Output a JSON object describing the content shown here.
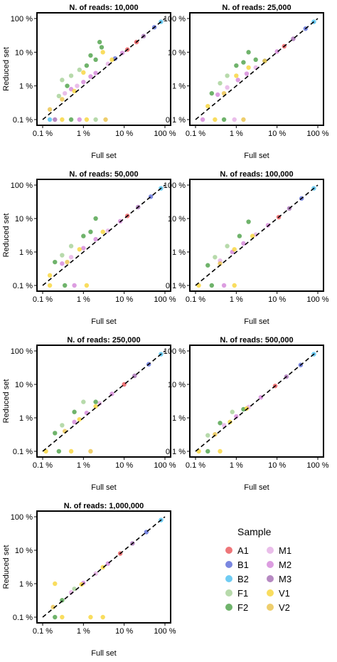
{
  "chart_data": {
    "type": "scatter",
    "scale": "log",
    "grid": false,
    "xlabel": "Full set",
    "ylabel": "Reduced set",
    "xlim": [
      0.1,
      100
    ],
    "ylim": [
      0.1,
      100
    ],
    "ticks": [
      {
        "value": 0.1,
        "label": "0.1 %"
      },
      {
        "value": 1,
        "label": "1 %"
      },
      {
        "value": 10,
        "label": "10 %"
      },
      {
        "value": 100,
        "label": "100 %"
      }
    ],
    "reference_line": "y = x (dashed)",
    "legend": {
      "title": "Sample",
      "position": "bottom-right",
      "entries": [
        {
          "name": "A1",
          "color": "#E8484C"
        },
        {
          "name": "M1",
          "color": "#E3A8E3"
        },
        {
          "name": "B1",
          "color": "#4D5FD6"
        },
        {
          "name": "M2",
          "color": "#D07CD6"
        },
        {
          "name": "B2",
          "color": "#3FBBEF"
        },
        {
          "name": "M3",
          "color": "#9E62AD"
        },
        {
          "name": "F1",
          "color": "#9FCE8F"
        },
        {
          "name": "V1",
          "color": "#F7D22A"
        },
        {
          "name": "F2",
          "color": "#3F9A3A"
        },
        {
          "name": "V2",
          "color": "#E8BE3C"
        }
      ]
    },
    "panels": [
      {
        "title": "N. of reads: 10,000",
        "points": [
          {
            "x": 80,
            "y": 80,
            "s": "B2"
          },
          {
            "x": 55,
            "y": 55,
            "s": "B1"
          },
          {
            "x": 30,
            "y": 30,
            "s": "M3"
          },
          {
            "x": 20,
            "y": 20,
            "s": "A1"
          },
          {
            "x": 12,
            "y": 12,
            "s": "A1"
          },
          {
            "x": 9,
            "y": 9.5,
            "s": "M2"
          },
          {
            "x": 6,
            "y": 6.5,
            "s": "B1"
          },
          {
            "x": 4,
            "y": 4.5,
            "s": "M1"
          },
          {
            "x": 2,
            "y": 2.4,
            "s": "M2"
          },
          {
            "x": 1.5,
            "y": 1.9,
            "s": "M2"
          },
          {
            "x": 1,
            "y": 1.3,
            "s": "M2"
          },
          {
            "x": 0.7,
            "y": 1.0,
            "s": "M1"
          },
          {
            "x": 0.5,
            "y": 0.8,
            "s": "M2"
          },
          {
            "x": 0.35,
            "y": 0.6,
            "s": "M1"
          },
          {
            "x": 1.2,
            "y": 4,
            "s": "F2"
          },
          {
            "x": 2,
            "y": 6,
            "s": "F2"
          },
          {
            "x": 2.5,
            "y": 20,
            "s": "F2"
          },
          {
            "x": 1.5,
            "y": 8,
            "s": "F2"
          },
          {
            "x": 0.8,
            "y": 3,
            "s": "F1"
          },
          {
            "x": 0.5,
            "y": 2,
            "s": "F1"
          },
          {
            "x": 0.4,
            "y": 1,
            "s": "F2"
          },
          {
            "x": 0.25,
            "y": 0.5,
            "s": "F1"
          },
          {
            "x": 0.3,
            "y": 1.5,
            "s": "F1"
          },
          {
            "x": 2.8,
            "y": 14,
            "s": "F2"
          },
          {
            "x": 1,
            "y": 2.5,
            "s": "V1"
          },
          {
            "x": 3,
            "y": 10,
            "s": "V1"
          },
          {
            "x": 5,
            "y": 6,
            "s": "V1"
          },
          {
            "x": 0.6,
            "y": 0.7,
            "s": "V1"
          },
          {
            "x": 0.3,
            "y": 0.4,
            "s": "V2"
          },
          {
            "x": 0.15,
            "y": 0.2,
            "s": "V2"
          },
          {
            "x": 0.15,
            "y": 0.1,
            "s": "B2"
          },
          {
            "x": 0.3,
            "y": 0.1,
            "s": "V1"
          },
          {
            "x": 0.5,
            "y": 0.1,
            "s": "F2"
          },
          {
            "x": 0.8,
            "y": 0.1,
            "s": "M2"
          },
          {
            "x": 1.2,
            "y": 0.1,
            "s": "V1"
          },
          {
            "x": 2,
            "y": 0.1,
            "s": "F1"
          },
          {
            "x": 3.5,
            "y": 0.1,
            "s": "V2"
          },
          {
            "x": 0.2,
            "y": 0.1,
            "s": "M3"
          }
        ]
      },
      {
        "title": "N. of reads: 25,000",
        "points": [
          {
            "x": 80,
            "y": 80,
            "s": "B2"
          },
          {
            "x": 50,
            "y": 50,
            "s": "B1"
          },
          {
            "x": 25,
            "y": 25,
            "s": "M3"
          },
          {
            "x": 15,
            "y": 15,
            "s": "A1"
          },
          {
            "x": 10,
            "y": 10.5,
            "s": "M2"
          },
          {
            "x": 5,
            "y": 5.5,
            "s": "B1"
          },
          {
            "x": 3,
            "y": 3.5,
            "s": "M1"
          },
          {
            "x": 1.8,
            "y": 2.3,
            "s": "M2"
          },
          {
            "x": 1.1,
            "y": 1.5,
            "s": "M2"
          },
          {
            "x": 0.6,
            "y": 0.9,
            "s": "M1"
          },
          {
            "x": 0.35,
            "y": 0.55,
            "s": "M2"
          },
          {
            "x": 2,
            "y": 10,
            "s": "F2"
          },
          {
            "x": 1,
            "y": 4,
            "s": "F2"
          },
          {
            "x": 1.5,
            "y": 5,
            "s": "F2"
          },
          {
            "x": 0.6,
            "y": 2,
            "s": "F1"
          },
          {
            "x": 0.4,
            "y": 1.2,
            "s": "F1"
          },
          {
            "x": 0.25,
            "y": 0.6,
            "s": "F2"
          },
          {
            "x": 3,
            "y": 6,
            "s": "F2"
          },
          {
            "x": 1,
            "y": 2,
            "s": "V1"
          },
          {
            "x": 2,
            "y": 3.5,
            "s": "V1"
          },
          {
            "x": 5,
            "y": 5.5,
            "s": "V1"
          },
          {
            "x": 0.5,
            "y": 0.6,
            "s": "V2"
          },
          {
            "x": 0.2,
            "y": 0.25,
            "s": "V1"
          },
          {
            "x": 0.15,
            "y": 0.1,
            "s": "M2"
          },
          {
            "x": 0.3,
            "y": 0.1,
            "s": "V1"
          },
          {
            "x": 0.5,
            "y": 0.1,
            "s": "F2"
          },
          {
            "x": 0.9,
            "y": 0.1,
            "s": "M1"
          },
          {
            "x": 1.5,
            "y": 0.1,
            "s": "V2"
          }
        ]
      },
      {
        "title": "N. of reads: 50,000",
        "points": [
          {
            "x": 80,
            "y": 80,
            "s": "B2"
          },
          {
            "x": 45,
            "y": 45,
            "s": "B1"
          },
          {
            "x": 22,
            "y": 22,
            "s": "M3"
          },
          {
            "x": 12,
            "y": 12,
            "s": "A1"
          },
          {
            "x": 8,
            "y": 8.3,
            "s": "M2"
          },
          {
            "x": 4,
            "y": 4.3,
            "s": "M1"
          },
          {
            "x": 2,
            "y": 2.4,
            "s": "M2"
          },
          {
            "x": 1,
            "y": 1.3,
            "s": "M2"
          },
          {
            "x": 0.5,
            "y": 0.7,
            "s": "M1"
          },
          {
            "x": 0.3,
            "y": 0.45,
            "s": "M2"
          },
          {
            "x": 2,
            "y": 10,
            "s": "F2"
          },
          {
            "x": 1,
            "y": 3,
            "s": "F2"
          },
          {
            "x": 0.5,
            "y": 1.5,
            "s": "F1"
          },
          {
            "x": 0.3,
            "y": 0.8,
            "s": "F1"
          },
          {
            "x": 0.2,
            "y": 0.5,
            "s": "F2"
          },
          {
            "x": 1.5,
            "y": 4,
            "s": "F2"
          },
          {
            "x": 0.8,
            "y": 1.2,
            "s": "V1"
          },
          {
            "x": 3,
            "y": 4,
            "s": "V1"
          },
          {
            "x": 0.4,
            "y": 0.5,
            "s": "V2"
          },
          {
            "x": 0.15,
            "y": 0.2,
            "s": "V1"
          },
          {
            "x": 0.15,
            "y": 0.1,
            "s": "V1"
          },
          {
            "x": 0.35,
            "y": 0.1,
            "s": "F2"
          },
          {
            "x": 0.6,
            "y": 0.1,
            "s": "M2"
          },
          {
            "x": 1.2,
            "y": 0.1,
            "s": "V1"
          }
        ]
      },
      {
        "title": "N. of reads: 100,000",
        "points": [
          {
            "x": 80,
            "y": 80,
            "s": "B2"
          },
          {
            "x": 40,
            "y": 40,
            "s": "B1"
          },
          {
            "x": 20,
            "y": 20,
            "s": "M3"
          },
          {
            "x": 11,
            "y": 11,
            "s": "A1"
          },
          {
            "x": 6,
            "y": 6.3,
            "s": "M2"
          },
          {
            "x": 3,
            "y": 3.3,
            "s": "M1"
          },
          {
            "x": 1.5,
            "y": 1.8,
            "s": "M2"
          },
          {
            "x": 0.8,
            "y": 1,
            "s": "M2"
          },
          {
            "x": 0.4,
            "y": 0.55,
            "s": "M1"
          },
          {
            "x": 2,
            "y": 8,
            "s": "F2"
          },
          {
            "x": 1.2,
            "y": 3,
            "s": "F2"
          },
          {
            "x": 0.6,
            "y": 1.5,
            "s": "F1"
          },
          {
            "x": 0.3,
            "y": 0.7,
            "s": "F1"
          },
          {
            "x": 0.2,
            "y": 0.4,
            "s": "F2"
          },
          {
            "x": 0.9,
            "y": 1.2,
            "s": "V1"
          },
          {
            "x": 2.5,
            "y": 3,
            "s": "V1"
          },
          {
            "x": 0.4,
            "y": 0.45,
            "s": "V2"
          },
          {
            "x": 0.12,
            "y": 0.1,
            "s": "V1"
          },
          {
            "x": 0.25,
            "y": 0.1,
            "s": "F2"
          },
          {
            "x": 0.5,
            "y": 0.1,
            "s": "M2"
          },
          {
            "x": 0.9,
            "y": 0.1,
            "s": "V1"
          }
        ]
      },
      {
        "title": "N. of reads: 250,000",
        "points": [
          {
            "x": 80,
            "y": 80,
            "s": "B2"
          },
          {
            "x": 40,
            "y": 40,
            "s": "B1"
          },
          {
            "x": 18,
            "y": 18,
            "s": "M3"
          },
          {
            "x": 10,
            "y": 10,
            "s": "A1"
          },
          {
            "x": 5,
            "y": 5.2,
            "s": "M2"
          },
          {
            "x": 2.5,
            "y": 2.7,
            "s": "M1"
          },
          {
            "x": 1.2,
            "y": 1.4,
            "s": "M2"
          },
          {
            "x": 0.6,
            "y": 0.75,
            "s": "M2"
          },
          {
            "x": 1,
            "y": 3,
            "s": "F1"
          },
          {
            "x": 0.6,
            "y": 1.5,
            "s": "F2"
          },
          {
            "x": 0.3,
            "y": 0.6,
            "s": "F1"
          },
          {
            "x": 0.2,
            "y": 0.35,
            "s": "F2"
          },
          {
            "x": 2,
            "y": 3,
            "s": "F2"
          },
          {
            "x": 0.8,
            "y": 0.9,
            "s": "V1"
          },
          {
            "x": 2,
            "y": 2.2,
            "s": "V1"
          },
          {
            "x": 0.35,
            "y": 0.4,
            "s": "V2"
          },
          {
            "x": 0.12,
            "y": 0.1,
            "s": "V1"
          },
          {
            "x": 0.25,
            "y": 0.1,
            "s": "F2"
          },
          {
            "x": 0.5,
            "y": 0.1,
            "s": "V1"
          },
          {
            "x": 1.5,
            "y": 0.1,
            "s": "V2"
          }
        ]
      },
      {
        "title": "N. of reads: 500,000",
        "points": [
          {
            "x": 80,
            "y": 80,
            "s": "B2"
          },
          {
            "x": 38,
            "y": 38,
            "s": "B1"
          },
          {
            "x": 17,
            "y": 17,
            "s": "M3"
          },
          {
            "x": 9,
            "y": 9,
            "s": "A1"
          },
          {
            "x": 4,
            "y": 4.1,
            "s": "M2"
          },
          {
            "x": 2,
            "y": 2.1,
            "s": "M1"
          },
          {
            "x": 1,
            "y": 1.1,
            "s": "M2"
          },
          {
            "x": 0.5,
            "y": 0.6,
            "s": "M1"
          },
          {
            "x": 0.8,
            "y": 1.5,
            "s": "F1"
          },
          {
            "x": 0.4,
            "y": 0.7,
            "s": "F2"
          },
          {
            "x": 0.2,
            "y": 0.3,
            "s": "F1"
          },
          {
            "x": 1.5,
            "y": 1.8,
            "s": "F2"
          },
          {
            "x": 0.7,
            "y": 0.75,
            "s": "V1"
          },
          {
            "x": 1.8,
            "y": 1.9,
            "s": "V1"
          },
          {
            "x": 0.3,
            "y": 0.32,
            "s": "V2"
          },
          {
            "x": 0.12,
            "y": 0.1,
            "s": "V1"
          },
          {
            "x": 0.2,
            "y": 0.1,
            "s": "F2"
          },
          {
            "x": 0.4,
            "y": 0.1,
            "s": "V1"
          }
        ]
      },
      {
        "title": "N. of reads: 1,000,000",
        "points": [
          {
            "x": 80,
            "y": 80,
            "s": "B2"
          },
          {
            "x": 35,
            "y": 35,
            "s": "B1"
          },
          {
            "x": 16,
            "y": 16,
            "s": "M3"
          },
          {
            "x": 8,
            "y": 8,
            "s": "A1"
          },
          {
            "x": 4,
            "y": 4,
            "s": "M2"
          },
          {
            "x": 2,
            "y": 2,
            "s": "M1"
          },
          {
            "x": 1,
            "y": 1.05,
            "s": "M2"
          },
          {
            "x": 0.5,
            "y": 0.55,
            "s": "M1"
          },
          {
            "x": 0.3,
            "y": 0.32,
            "s": "F2"
          },
          {
            "x": 0.6,
            "y": 0.7,
            "s": "F1"
          },
          {
            "x": 0.2,
            "y": 1,
            "s": "V1"
          },
          {
            "x": 0.18,
            "y": 0.2,
            "s": "V2"
          },
          {
            "x": 0.9,
            "y": 0.95,
            "s": "V1"
          },
          {
            "x": 3,
            "y": 3.1,
            "s": "V1"
          },
          {
            "x": 0.3,
            "y": 0.1,
            "s": "V1"
          },
          {
            "x": 1.5,
            "y": 0.1,
            "s": "V1"
          },
          {
            "x": 3,
            "y": 0.1,
            "s": "V1"
          },
          {
            "x": 0.2,
            "y": 0.1,
            "s": "F2"
          }
        ]
      }
    ]
  }
}
